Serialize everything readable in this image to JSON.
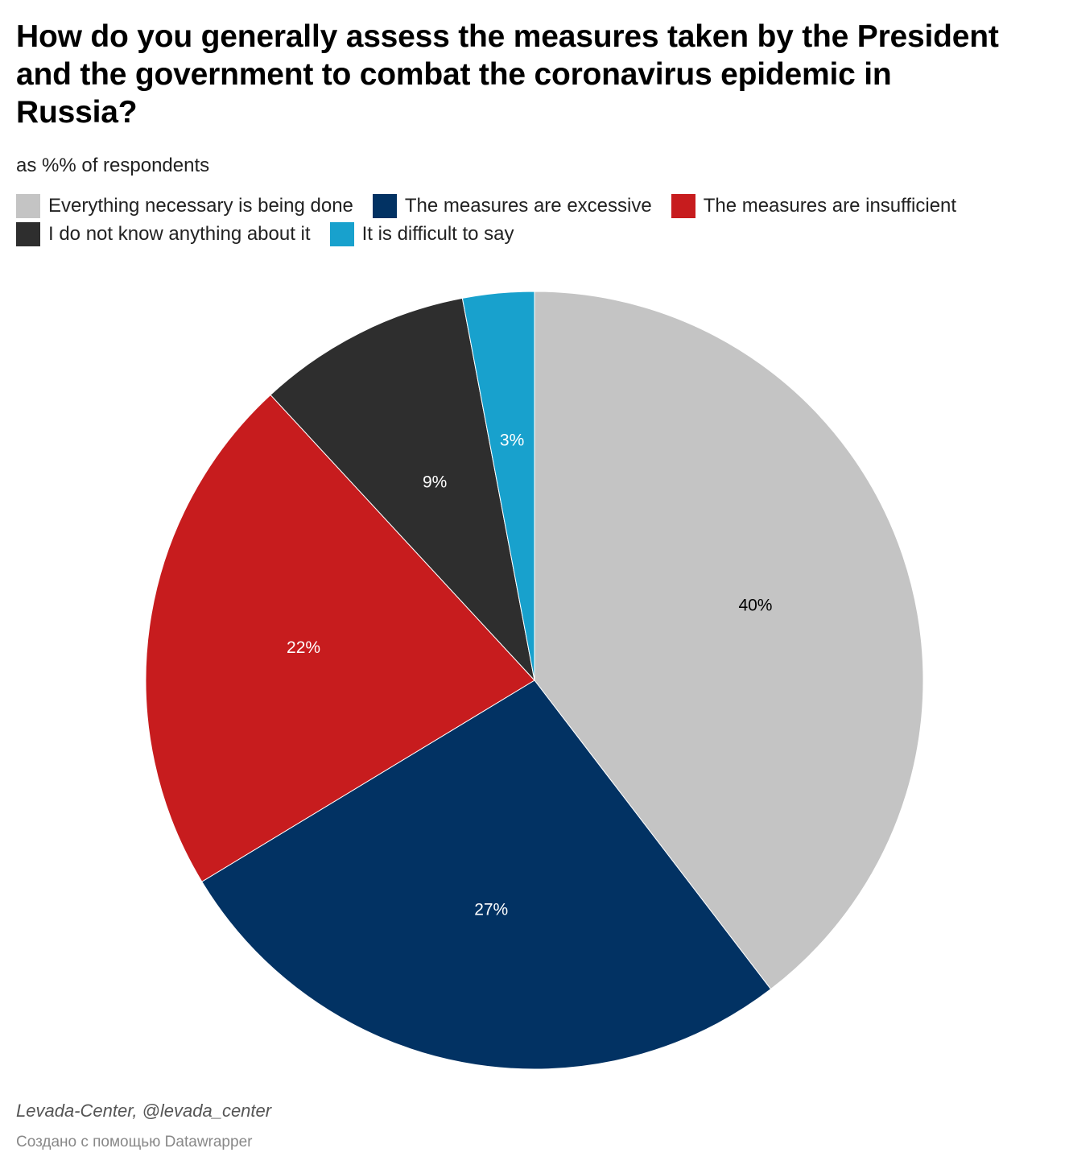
{
  "chart_data": {
    "type": "pie",
    "title": "How do you generally assess the measures taken by the President and the government to combat the coronavirus epidemic in Russia?",
    "subtitle": "as %% of respondents",
    "categories": [
      "Everything necessary is being done",
      "The measures are excessive",
      "The measures are insufficient",
      "I do not know anything about it",
      "It is difficult to say"
    ],
    "values": [
      40,
      27,
      22,
      9,
      3
    ],
    "value_labels": [
      "40%",
      "27%",
      "22%",
      "9%",
      "3%"
    ],
    "colors": [
      "#c4c4c4",
      "#023263",
      "#c71c1e",
      "#2e2e2e",
      "#18a1cd"
    ],
    "label_colors": [
      "#000000",
      "#ffffff",
      "#ffffff",
      "#ffffff",
      "#ffffff"
    ],
    "legend_position": "top-left",
    "start_angle_deg": 0,
    "direction": "clockwise"
  },
  "legend": {
    "items": [
      {
        "label": "Everything necessary is being done",
        "color": "#c4c4c4"
      },
      {
        "label": "The measures are excessive",
        "color": "#023263"
      },
      {
        "label": "The measures are insufficient",
        "color": "#c71c1e"
      },
      {
        "label": "I do not know anything about it",
        "color": "#2e2e2e"
      },
      {
        "label": "It is difficult to say",
        "color": "#18a1cd"
      }
    ]
  },
  "footer": {
    "source": "Levada-Center, @levada_center",
    "credit": "Создано с помощью Datawrapper"
  }
}
